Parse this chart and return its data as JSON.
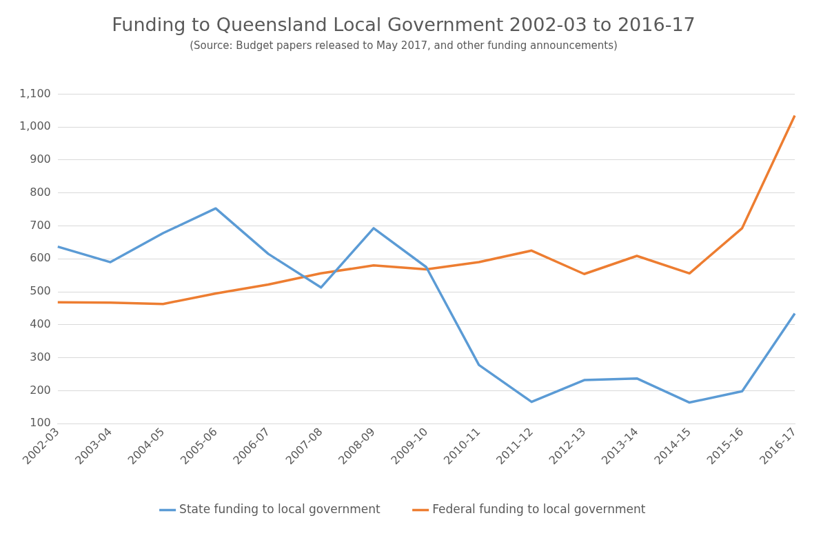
{
  "chart_data": {
    "type": "line",
    "title": "Funding to Queensland Local Government 2002-03 to 2016-17",
    "subtitle": "(Source: Budget papers released to May 2017, and other funding announcements)",
    "categories": [
      "2002-03",
      "2003-04",
      "2004-05",
      "2005-06",
      "2006-07",
      "2007-08",
      "2008-09",
      "2009-10",
      "2010-11",
      "2011-12",
      "2012-13",
      "2013-14",
      "2014-15",
      "2015-16",
      "2016-17"
    ],
    "series": [
      {
        "name": "State funding to local government",
        "color": "#5b9bd5",
        "values": [
          637,
          590,
          678,
          753,
          615,
          513,
          693,
          575,
          278,
          166,
          232,
          237,
          164,
          198,
          434
        ]
      },
      {
        "name": "Federal funding to local government",
        "color": "#ed7d31",
        "values": [
          468,
          467,
          463,
          495,
          522,
          556,
          580,
          568,
          590,
          625,
          554,
          609,
          556,
          693,
          1035
        ]
      }
    ],
    "ylim": [
      100,
      1100
    ],
    "yticks": [
      {
        "value": 100,
        "label": "100"
      },
      {
        "value": 200,
        "label": "200"
      },
      {
        "value": 300,
        "label": "300"
      },
      {
        "value": 400,
        "label": "400"
      },
      {
        "value": 500,
        "label": "500"
      },
      {
        "value": 600,
        "label": "600"
      },
      {
        "value": 700,
        "label": "700"
      },
      {
        "value": 800,
        "label": "800"
      },
      {
        "value": 900,
        "label": "900"
      },
      {
        "value": 1000,
        "label": "1,000"
      },
      {
        "value": 1100,
        "label": "1,100"
      }
    ],
    "grid": "y",
    "legend": "bottom",
    "marker": "none",
    "line_style": "solid"
  }
}
